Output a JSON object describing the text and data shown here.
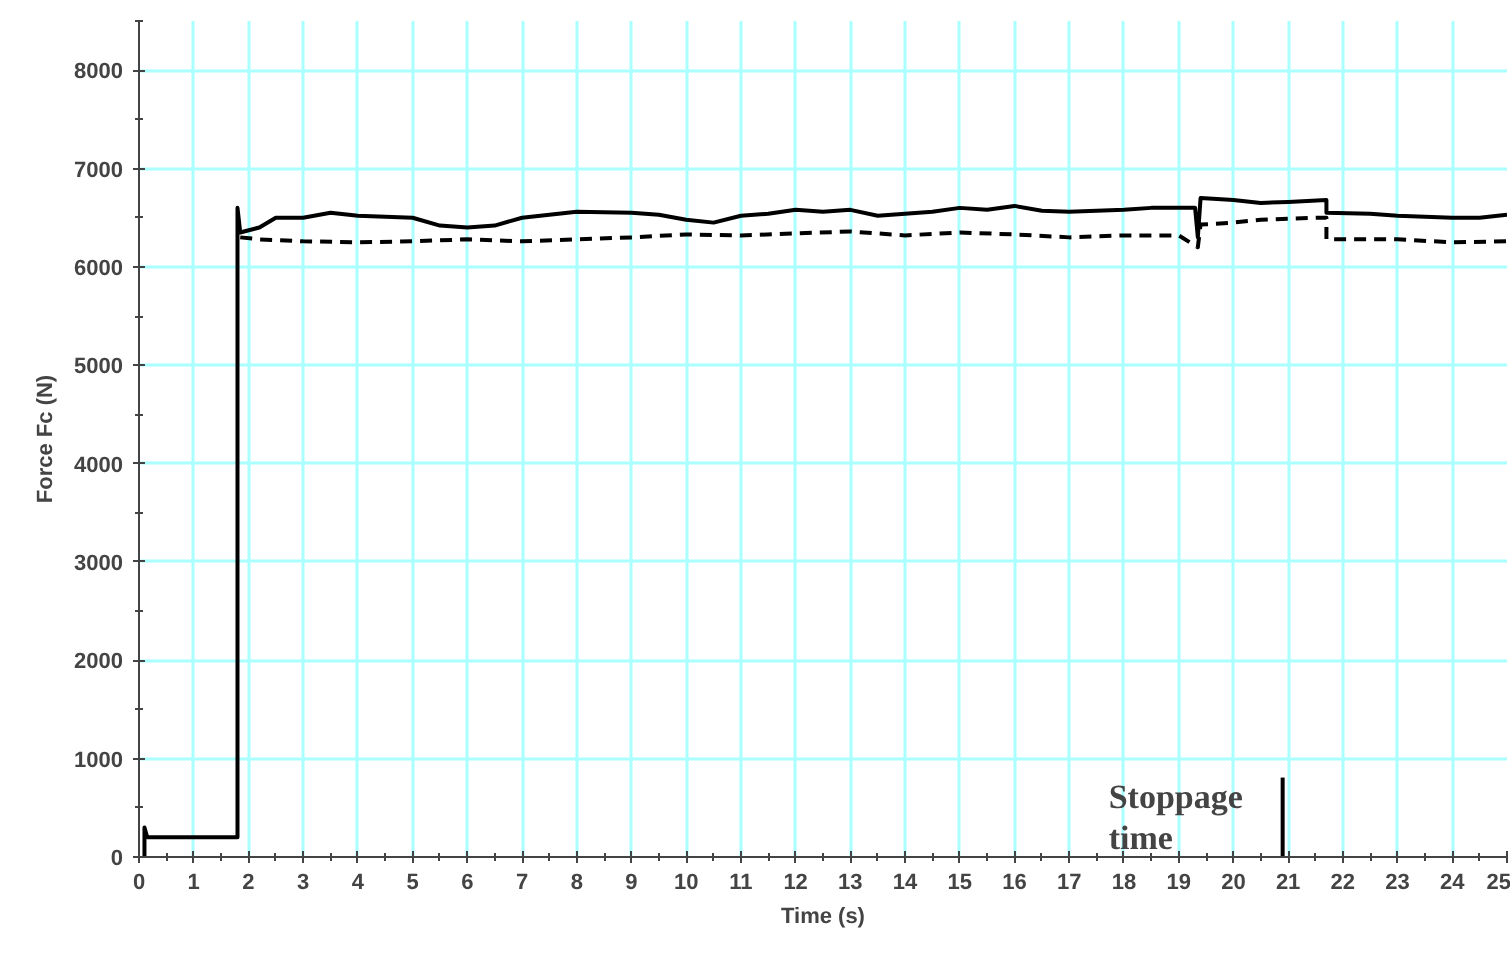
{
  "chart_data": {
    "type": "line",
    "xlabel": "Time (s)",
    "ylabel": "Force Fc (N)",
    "xlim": [
      0,
      25
    ],
    "ylim": [
      0,
      8500
    ],
    "xticks": [
      0,
      1,
      2,
      3,
      4,
      5,
      6,
      7,
      8,
      9,
      10,
      11,
      12,
      13,
      14,
      15,
      16,
      17,
      18,
      19,
      20,
      21,
      22,
      23,
      24,
      25
    ],
    "yticks": [
      0,
      1000,
      2000,
      3000,
      4000,
      5000,
      6000,
      7000,
      8000
    ],
    "grid": true,
    "series": [
      {
        "color": "#000000",
        "line_style": "solid",
        "x": [
          0.1,
          0.1,
          0.15,
          1.8,
          1.8,
          1.85,
          2.2,
          2.5,
          3.0,
          3.5,
          4,
          5,
          5.5,
          6,
          6.5,
          7,
          7.5,
          8,
          9,
          9.5,
          10,
          10.5,
          11,
          11.5,
          12,
          12.5,
          13,
          13.5,
          14,
          14.5,
          15,
          15.5,
          16,
          16.5,
          17,
          18,
          18.5,
          19.3,
          19.35,
          19.4,
          20,
          20.5,
          21,
          21.7,
          21.7,
          22.5,
          23,
          24,
          24.5,
          25
        ],
        "values": [
          0,
          300,
          200,
          200,
          6600,
          6350,
          6400,
          6500,
          6500,
          6550,
          6520,
          6500,
          6420,
          6400,
          6420,
          6500,
          6530,
          6560,
          6550,
          6530,
          6480,
          6450,
          6520,
          6540,
          6580,
          6560,
          6580,
          6520,
          6540,
          6560,
          6600,
          6580,
          6620,
          6570,
          6560,
          6580,
          6600,
          6600,
          6300,
          6700,
          6680,
          6650,
          6660,
          6680,
          6550,
          6540,
          6520,
          6500,
          6500,
          6530
        ]
      },
      {
        "color": "#000000",
        "line_style": "dashed",
        "x": [
          1.85,
          2.2,
          3,
          4,
          5,
          6,
          7,
          8,
          9,
          10,
          11,
          12,
          13,
          14,
          15,
          16,
          17,
          18,
          19,
          19.35,
          19.4,
          20,
          20.5,
          21,
          21.5,
          21.7,
          21.7,
          23,
          24,
          25
        ],
        "values": [
          6300,
          6280,
          6260,
          6250,
          6260,
          6280,
          6260,
          6280,
          6300,
          6330,
          6320,
          6340,
          6360,
          6320,
          6350,
          6330,
          6300,
          6320,
          6320,
          6200,
          6430,
          6450,
          6480,
          6490,
          6500,
          6500,
          6280,
          6280,
          6250,
          6260
        ]
      }
    ],
    "ref_lines": [
      {
        "axis": "x",
        "value": 20.9,
        "label": "Stoppage\ntime",
        "color": "#000000"
      }
    ]
  }
}
